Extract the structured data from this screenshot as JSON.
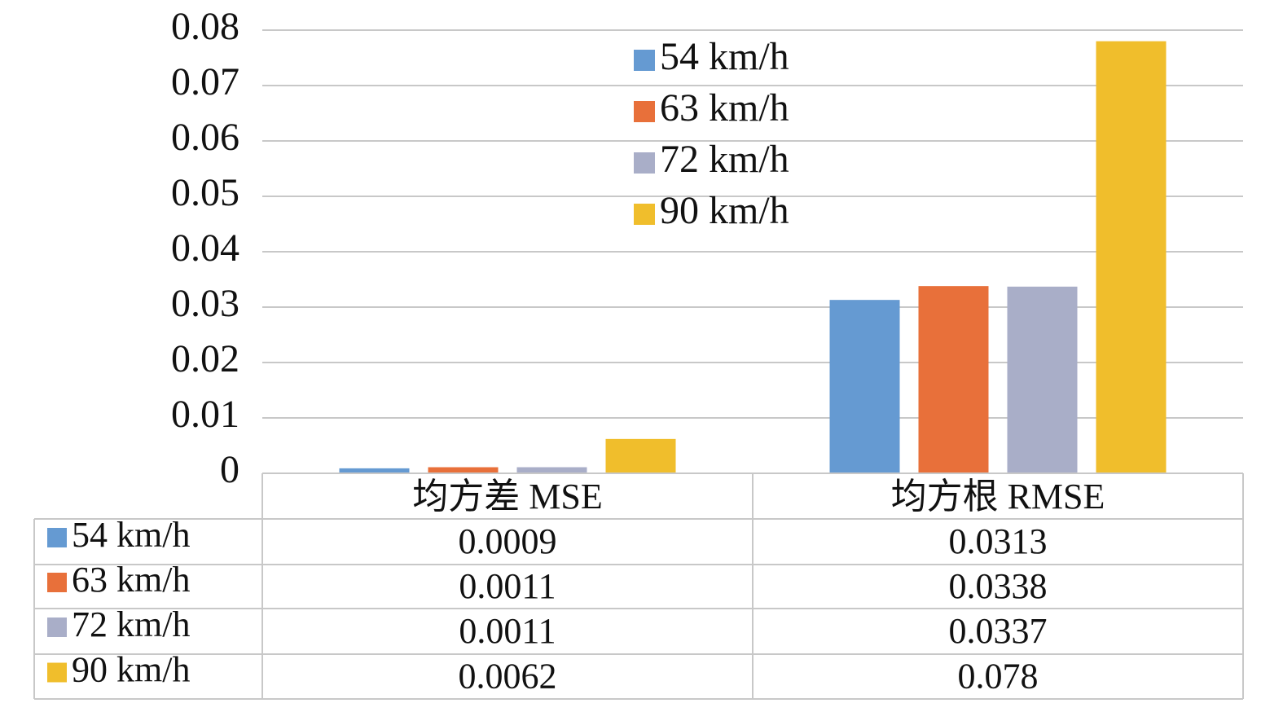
{
  "chart_data": {
    "type": "bar",
    "categories": [
      "均方差 MSE",
      "均方根 RMSE"
    ],
    "series": [
      {
        "name": "54 km/h",
        "color": "#659ad2",
        "values": [
          0.0009,
          0.0313
        ]
      },
      {
        "name": "63 km/h",
        "color": "#e8703a",
        "values": [
          0.0011,
          0.0338
        ]
      },
      {
        "name": "72 km/h",
        "color": "#a9aec8",
        "values": [
          0.0011,
          0.0337
        ]
      },
      {
        "name": "90 km/h",
        "color": "#f0be2c",
        "values": [
          0.0062,
          0.078
        ]
      }
    ],
    "ylim": [
      0,
      0.08
    ],
    "yticks": [
      0,
      0.01,
      0.02,
      0.03,
      0.04,
      0.05,
      0.06,
      0.07,
      0.08
    ],
    "grid": true,
    "legend": "top",
    "data_table": true
  }
}
